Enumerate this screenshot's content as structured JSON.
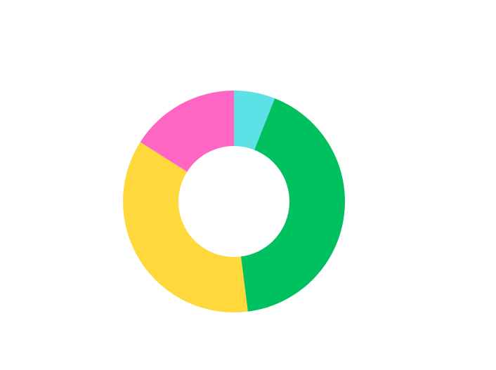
{
  "chart_data": {
    "type": "donut",
    "values": [
      6,
      42,
      36,
      16
    ],
    "colors": [
      "#5ce1e6",
      "#00c060",
      "#ffd83c",
      "#ff66c4"
    ],
    "start_angle": 0,
    "direction": "clockwise"
  }
}
